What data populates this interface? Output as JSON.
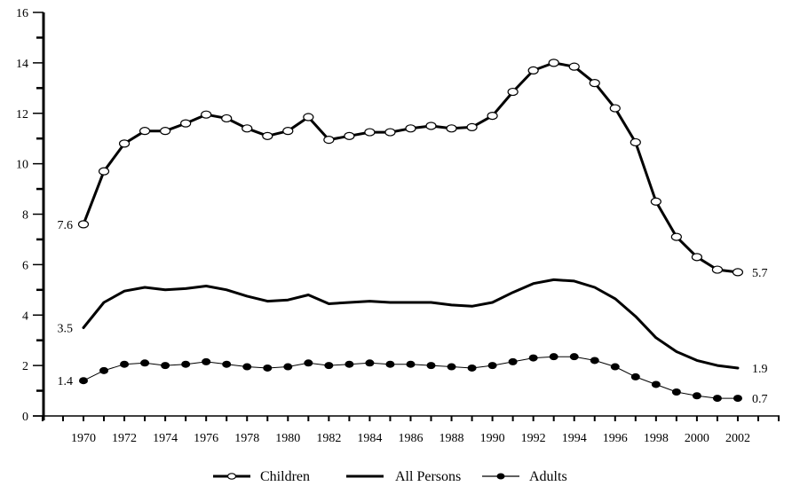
{
  "chart_data": {
    "type": "line",
    "title": "",
    "xlabel": "",
    "ylabel": "",
    "ylim": [
      0,
      16
    ],
    "xlim": [
      1968,
      2004
    ],
    "grid": false,
    "legend_position": "bottom",
    "y_ticks": [
      0,
      2,
      4,
      6,
      8,
      10,
      12,
      14,
      16
    ],
    "x_tick_labels": [
      "1970",
      "1972",
      "1974",
      "1976",
      "1978",
      "1980",
      "1982",
      "1984",
      "1986",
      "1988",
      "1990",
      "1992",
      "1994",
      "1996",
      "1998",
      "2000",
      "2002"
    ],
    "x": [
      1970,
      1971,
      1972,
      1973,
      1974,
      1975,
      1976,
      1977,
      1978,
      1979,
      1980,
      1981,
      1982,
      1983,
      1984,
      1985,
      1986,
      1987,
      1988,
      1989,
      1990,
      1991,
      1992,
      1993,
      1994,
      1995,
      1996,
      1997,
      1998,
      1999,
      2000,
      2001,
      2002
    ],
    "series": [
      {
        "name": "Children",
        "marker": "open-circle",
        "line_width": 3,
        "values": [
          7.6,
          9.7,
          10.8,
          11.3,
          11.3,
          11.6,
          11.95,
          11.8,
          11.4,
          11.1,
          11.3,
          11.85,
          10.95,
          11.1,
          11.25,
          11.25,
          11.4,
          11.5,
          11.4,
          11.45,
          11.9,
          12.85,
          13.7,
          14.0,
          13.85,
          13.2,
          12.2,
          10.85,
          8.5,
          7.1,
          6.3,
          5.8,
          5.7
        ],
        "start_label": "7.6",
        "end_label": "5.7"
      },
      {
        "name": "All Persons",
        "marker": "none",
        "line_width": 3,
        "values": [
          3.5,
          4.5,
          4.95,
          5.1,
          5.0,
          5.05,
          5.15,
          5.0,
          4.75,
          4.55,
          4.6,
          4.8,
          4.45,
          4.5,
          4.55,
          4.5,
          4.5,
          4.5,
          4.4,
          4.35,
          4.5,
          4.9,
          5.25,
          5.4,
          5.35,
          5.1,
          4.65,
          3.95,
          3.1,
          2.55,
          2.2,
          2.0,
          1.9
        ],
        "start_label": "3.5",
        "end_label": "1.9"
      },
      {
        "name": "Adults",
        "marker": "filled-circle",
        "line_width": 1,
        "values": [
          1.4,
          1.8,
          2.05,
          2.1,
          2.0,
          2.05,
          2.15,
          2.05,
          1.95,
          1.9,
          1.95,
          2.1,
          2.0,
          2.05,
          2.1,
          2.05,
          2.05,
          2.0,
          1.95,
          1.9,
          2.0,
          2.15,
          2.3,
          2.35,
          2.35,
          2.2,
          1.95,
          1.55,
          1.25,
          0.95,
          0.8,
          0.7,
          0.7
        ],
        "start_label": "1.4",
        "end_label": "0.7"
      }
    ]
  },
  "legend": {
    "items": [
      {
        "label": "Children",
        "marker": "open-circle"
      },
      {
        "label": "All Persons",
        "marker": "none"
      },
      {
        "label": "Adults",
        "marker": "filled-circle"
      }
    ]
  },
  "colors": {
    "line": "#000000",
    "background": "#ffffff",
    "marker_fill_open": "#ffffff"
  }
}
